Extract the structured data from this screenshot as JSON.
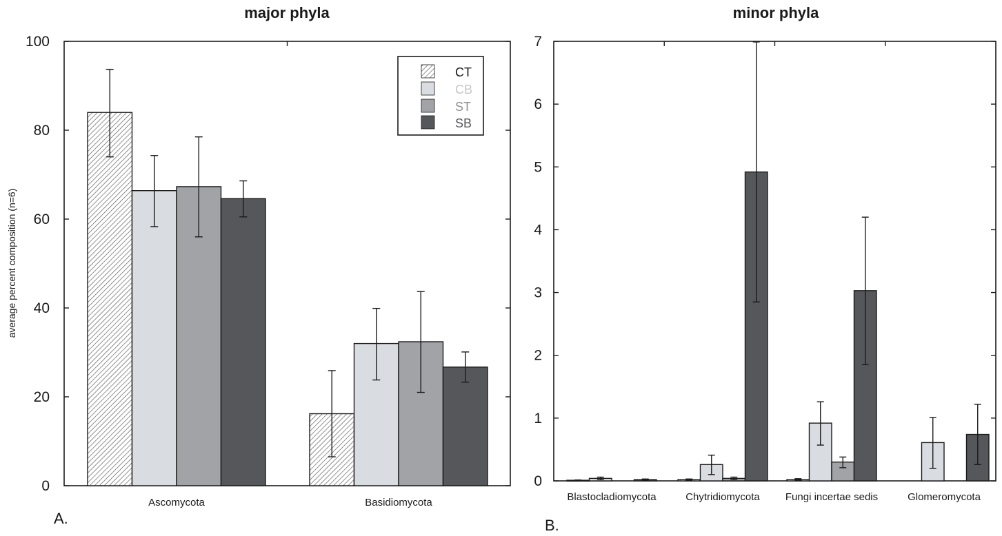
{
  "colors": {
    "CT": "hatch",
    "CB": "#d9dce0",
    "ST": "#a1a3a7",
    "SB": "#55575b",
    "axis": "#1a1a1a",
    "legend_text_CT": "#1a1a1a",
    "legend_text_CB": "#c4c6c9",
    "legend_text_ST": "#8e9094",
    "legend_text_SB": "#55575b"
  },
  "legend": [
    "CT",
    "CB",
    "ST",
    "SB"
  ],
  "chart_data": [
    {
      "type": "bar",
      "panel_label": "A.",
      "title": "major phyla",
      "ylabel": "average percent composition (n=6)",
      "xlabel": "",
      "ylim": [
        0,
        100
      ],
      "yticks": [
        0,
        20,
        40,
        60,
        80,
        100
      ],
      "categories": [
        "Ascomycota",
        "Basidiomycota"
      ],
      "legend_position": "top-right",
      "series": [
        {
          "name": "CT",
          "values": [
            84,
            16.2
          ],
          "err_low": [
            74,
            6.5
          ],
          "err_high": [
            93.7,
            25.9
          ]
        },
        {
          "name": "CB",
          "values": [
            66.4,
            32
          ],
          "err_low": [
            58.3,
            23.8
          ],
          "err_high": [
            74.3,
            39.9
          ]
        },
        {
          "name": "ST",
          "values": [
            67.3,
            32.4
          ],
          "err_low": [
            56,
            21
          ],
          "err_high": [
            78.5,
            43.7
          ]
        },
        {
          "name": "SB",
          "values": [
            64.6,
            26.7
          ],
          "err_low": [
            60.5,
            23.3
          ],
          "err_high": [
            68.6,
            30.1
          ]
        }
      ]
    },
    {
      "type": "bar",
      "panel_label": "B.",
      "title": "minor phyla",
      "ylabel": "",
      "xlabel": "",
      "ylim": [
        0,
        7
      ],
      "yticks": [
        0,
        1,
        2,
        3,
        4,
        5,
        6,
        7
      ],
      "categories": [
        "Blastocladiomycota",
        "Chytridiomycota",
        "Fungi incertae sedis",
        "Glomeromycota"
      ],
      "series": [
        {
          "name": "CT",
          "values": [
            0.01,
            0.02,
            0.02,
            0
          ],
          "err_low": [
            0.005,
            0.01,
            0.01,
            0
          ],
          "err_high": [
            0.015,
            0.03,
            0.035,
            0
          ]
        },
        {
          "name": "CB",
          "values": [
            0.04,
            0.26,
            0.92,
            0.61
          ],
          "err_low": [
            0.02,
            0.1,
            0.57,
            0.2
          ],
          "err_high": [
            0.06,
            0.41,
            1.26,
            1.01
          ]
        },
        {
          "name": "ST",
          "values": [
            0,
            0.04,
            0.3,
            0
          ],
          "err_low": [
            0,
            0.02,
            0.21,
            0
          ],
          "err_high": [
            0,
            0.06,
            0.38,
            0
          ]
        },
        {
          "name": "SB",
          "values": [
            0.02,
            4.92,
            3.03,
            0.74
          ],
          "err_low": [
            0.01,
            2.85,
            1.85,
            0.26
          ],
          "err_high": [
            0.03,
            6.99,
            4.2,
            1.22
          ]
        }
      ]
    }
  ]
}
